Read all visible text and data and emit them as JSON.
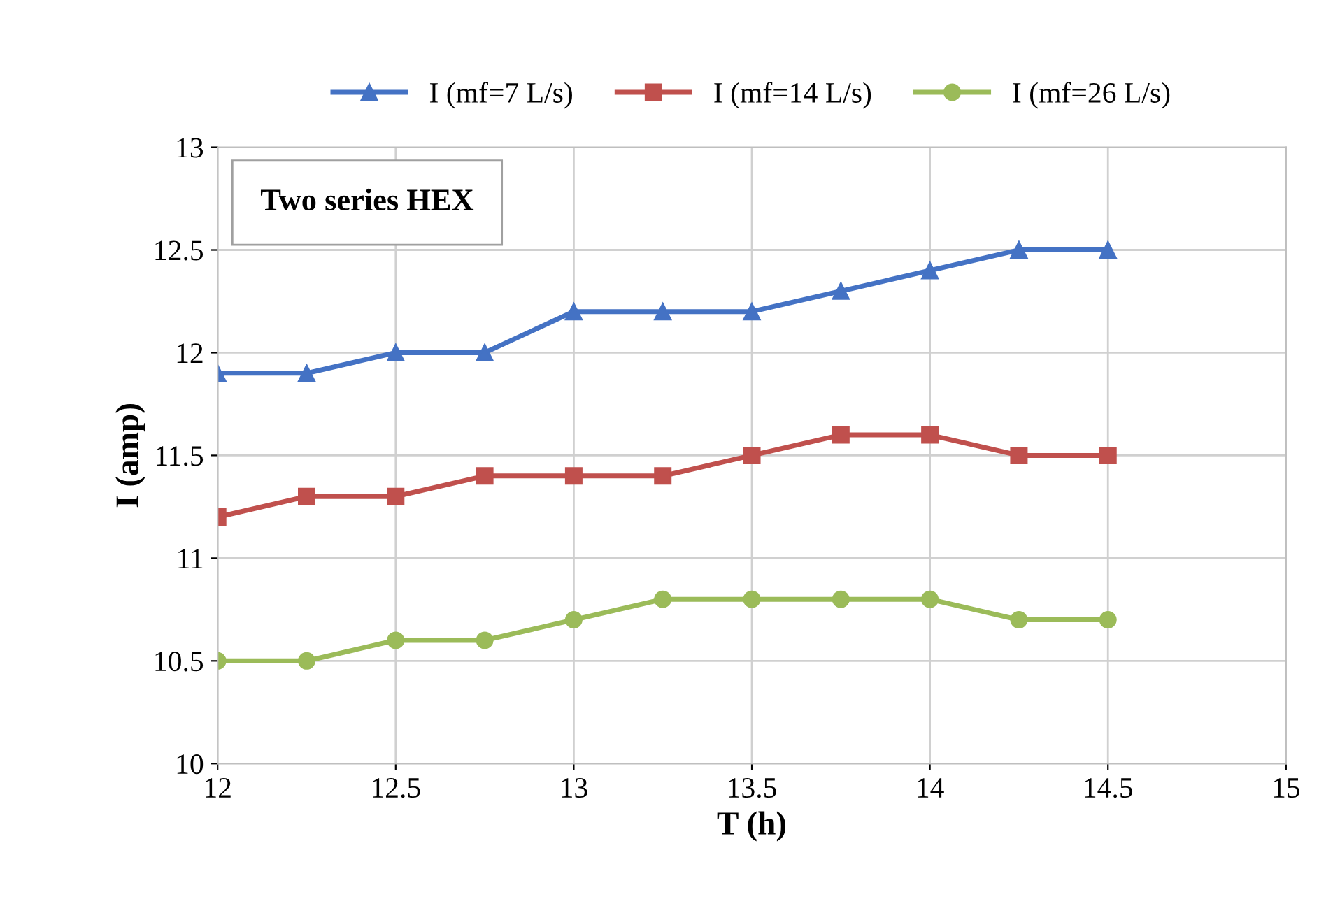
{
  "chart_data": {
    "type": "line",
    "xlabel": "T (h)",
    "ylabel": "I (amp)",
    "annotations": [
      "Two series HEX"
    ],
    "x": [
      12,
      12.25,
      12.5,
      12.75,
      13,
      13.25,
      13.5,
      13.75,
      14,
      14.25,
      14.5
    ],
    "series": [
      {
        "name": "I (mf=7 L/s)",
        "color": "#4472c4",
        "marker": "triangle",
        "values": [
          11.9,
          11.9,
          12.0,
          12.0,
          12.2,
          12.2,
          12.2,
          12.3,
          12.4,
          12.5,
          12.5
        ]
      },
      {
        "name": "I (mf=14 L/s)",
        "color": "#c0504d",
        "marker": "square",
        "values": [
          11.2,
          11.3,
          11.3,
          11.4,
          11.4,
          11.4,
          11.5,
          11.6,
          11.6,
          11.5,
          11.5
        ]
      },
      {
        "name": "I (mf=26 L/s)",
        "color": "#9bbb59",
        "marker": "circle",
        "values": [
          10.5,
          10.5,
          10.6,
          10.6,
          10.7,
          10.8,
          10.8,
          10.8,
          10.8,
          10.7,
          10.7
        ]
      }
    ],
    "xlim": [
      12,
      15
    ],
    "xticks": [
      12,
      12.5,
      13,
      13.5,
      14,
      14.5,
      15
    ],
    "ylim": [
      10,
      13
    ],
    "yticks": [
      10,
      10.5,
      11,
      11.5,
      12,
      12.5,
      13
    ],
    "grid": true,
    "legend": "top",
    "line_style": "solid"
  }
}
